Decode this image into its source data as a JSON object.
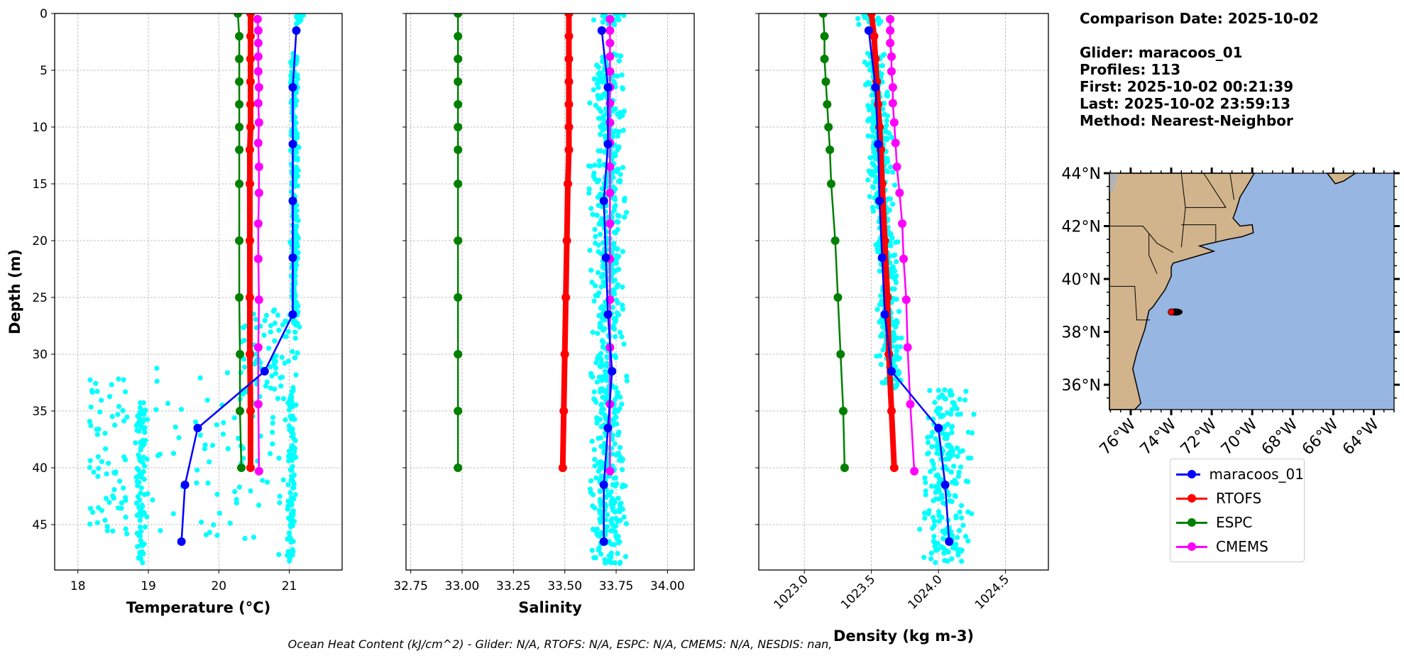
{
  "info": {
    "comparison_date": "Comparison Date: 2025-10-02",
    "glider": "Glider: maracoos_01",
    "profiles": "Profiles: 113",
    "first": "First: 2025-10-02 00:21:39",
    "last": "Last: 2025-10-02 23:59:13",
    "method": "Method: Nearest-Neighbor"
  },
  "footer": "Ocean Heat Content (kJ/cm^2) - Glider: N/A,  RTOFS: N/A,  ESPC: N/A,  CMEMS: N/A,  NESDIS: nan,",
  "colors": {
    "glider": "#0000ff",
    "rtofs": "#ff0000",
    "espc": "#008000",
    "cmems": "#ff00ff",
    "raw": "#00ffff",
    "land": "#d2b48c",
    "ocean": "#97b6e1"
  },
  "legend": [
    {
      "label": "maracoos_01",
      "color": "#0000ff"
    },
    {
      "label": "RTOFS",
      "color": "#ff0000"
    },
    {
      "label": "ESPC",
      "color": "#008000"
    },
    {
      "label": "CMEMS",
      "color": "#ff00ff"
    }
  ],
  "chart_data": [
    {
      "type": "line",
      "xlabel": "Temperature (°C)",
      "ylabel": "Depth (m)",
      "xlim": [
        17.67,
        21.75
      ],
      "ylim": [
        49,
        0
      ],
      "grid": true,
      "xticks": [
        "18",
        "19",
        "20",
        "21"
      ],
      "yticks": [
        "0",
        "5",
        "10",
        "15",
        "20",
        "25",
        "30",
        "35",
        "40",
        "45"
      ],
      "series": [
        {
          "name": "maracoos_01",
          "color": "#0000ff",
          "depth": [
            1.5,
            6.5,
            11.5,
            16.5,
            21.5,
            26.5,
            31.5,
            36.5,
            41.5,
            46.5
          ],
          "values": [
            21.1,
            21.05,
            21.05,
            21.05,
            21.05,
            21.05,
            20.65,
            19.7,
            19.52,
            19.47
          ]
        },
        {
          "name": "RTOFS",
          "color": "#ff0000",
          "depth": [
            0,
            2,
            4,
            6,
            8,
            10,
            12,
            15,
            20,
            25,
            30,
            35,
            40
          ],
          "values": [
            20.45,
            20.45,
            20.45,
            20.45,
            20.45,
            20.45,
            20.44,
            20.44,
            20.44,
            20.44,
            20.44,
            20.45,
            20.45
          ]
        },
        {
          "name": "ESPC",
          "color": "#008000",
          "depth": [
            0,
            2,
            4,
            6,
            8,
            10,
            12,
            15,
            20,
            25,
            30,
            35,
            40
          ],
          "values": [
            20.27,
            20.29,
            20.29,
            20.29,
            20.29,
            20.29,
            20.29,
            20.29,
            20.29,
            20.29,
            20.3,
            20.3,
            20.32
          ]
        },
        {
          "name": "CMEMS",
          "color": "#ff00ff",
          "depth": [
            0.5,
            1.5,
            2.6,
            3.8,
            5.1,
            6.5,
            7.9,
            9.6,
            11.4,
            13.5,
            15.8,
            18.5,
            21.6,
            25.2,
            29.4,
            34.4,
            40.3
          ],
          "values": [
            20.55,
            20.56,
            20.56,
            20.56,
            20.56,
            20.57,
            20.56,
            20.57,
            20.56,
            20.57,
            20.57,
            20.56,
            20.56,
            20.57,
            20.56,
            20.56,
            20.57
          ]
        }
      ]
    },
    {
      "type": "line",
      "xlabel": "Salinity",
      "xlim": [
        32.727,
        34.13
      ],
      "ylim": [
        49,
        0
      ],
      "grid": true,
      "xticks": [
        "32.75",
        "33.00",
        "33.25",
        "33.50",
        "33.75",
        "34.00"
      ],
      "series": [
        {
          "name": "maracoos_01",
          "color": "#0000ff",
          "depth": [
            1.5,
            6.5,
            11.5,
            16.5,
            21.5,
            26.5,
            31.5,
            36.5,
            41.5,
            46.5
          ],
          "values": [
            33.68,
            33.71,
            33.71,
            33.69,
            33.7,
            33.71,
            33.73,
            33.71,
            33.69,
            33.69
          ]
        },
        {
          "name": "RTOFS",
          "color": "#ff0000",
          "depth": [
            0,
            2,
            4,
            6,
            8,
            10,
            12,
            15,
            20,
            25,
            30,
            35,
            40
          ],
          "values": [
            33.52,
            33.52,
            33.52,
            33.52,
            33.52,
            33.52,
            33.52,
            33.515,
            33.51,
            33.505,
            33.5,
            33.495,
            33.49
          ]
        },
        {
          "name": "ESPC",
          "color": "#008000",
          "depth": [
            0,
            2,
            4,
            6,
            8,
            10,
            12,
            15,
            20,
            25,
            30,
            35,
            40
          ],
          "values": [
            32.98,
            32.98,
            32.98,
            32.98,
            32.98,
            32.98,
            32.98,
            32.98,
            32.98,
            32.98,
            32.98,
            32.98,
            32.98
          ]
        },
        {
          "name": "CMEMS",
          "color": "#ff00ff",
          "depth": [
            0.5,
            1.5,
            2.6,
            3.8,
            5.1,
            6.5,
            7.9,
            9.6,
            11.4,
            13.5,
            15.8,
            18.5,
            21.6,
            25.2,
            29.4,
            34.4,
            40.3
          ],
          "values": [
            33.72,
            33.72,
            33.72,
            33.72,
            33.72,
            33.72,
            33.72,
            33.72,
            33.72,
            33.72,
            33.72,
            33.72,
            33.72,
            33.72,
            33.72,
            33.72,
            33.72
          ]
        }
      ]
    },
    {
      "type": "line",
      "xlabel": "Density (kg m-3)",
      "xlim": [
        1022.66,
        1024.82
      ],
      "ylim": [
        49,
        0
      ],
      "grid": true,
      "xticks": [
        "1023.0",
        "1023.5",
        "1024.0",
        "1024.5"
      ],
      "series": [
        {
          "name": "maracoos_01",
          "color": "#0000ff",
          "depth": [
            1.5,
            6.5,
            11.5,
            16.5,
            21.5,
            26.5,
            31.5,
            36.5,
            41.5,
            46.5
          ],
          "values": [
            1023.48,
            1023.53,
            1023.55,
            1023.56,
            1023.58,
            1023.6,
            1023.65,
            1024.0,
            1024.05,
            1024.08
          ]
        },
        {
          "name": "RTOFS",
          "color": "#ff0000",
          "depth": [
            0,
            2,
            4,
            6,
            8,
            10,
            12,
            15,
            20,
            25,
            30,
            35,
            40
          ],
          "values": [
            1023.5,
            1023.52,
            1023.53,
            1023.54,
            1023.55,
            1023.56,
            1023.57,
            1023.58,
            1023.6,
            1023.62,
            1023.63,
            1023.65,
            1023.67
          ]
        },
        {
          "name": "ESPC",
          "color": "#008000",
          "depth": [
            0,
            2,
            4,
            6,
            8,
            10,
            12,
            15,
            20,
            25,
            30,
            35,
            40
          ],
          "values": [
            1023.14,
            1023.15,
            1023.15,
            1023.16,
            1023.17,
            1023.18,
            1023.19,
            1023.2,
            1023.23,
            1023.25,
            1023.27,
            1023.29,
            1023.3
          ]
        },
        {
          "name": "CMEMS",
          "color": "#ff00ff",
          "depth": [
            0.5,
            1.5,
            2.6,
            3.8,
            5.1,
            6.5,
            7.9,
            9.6,
            11.4,
            13.5,
            15.8,
            18.5,
            21.6,
            25.2,
            29.4,
            34.4,
            40.3
          ],
          "values": [
            1023.64,
            1023.64,
            1023.64,
            1023.65,
            1023.65,
            1023.66,
            1023.66,
            1023.67,
            1023.68,
            1023.69,
            1023.71,
            1023.73,
            1023.74,
            1023.76,
            1023.77,
            1023.79,
            1023.82
          ]
        }
      ]
    }
  ],
  "map": {
    "lon_range": [
      -77.05,
      -63.0
    ],
    "lat_range": [
      35.06,
      44.0
    ],
    "lat_ticks": [
      "36°N",
      "38°N",
      "40°N",
      "42°N",
      "44°N"
    ],
    "lon_ticks": [
      "76°W",
      "74°W",
      "72°W",
      "70°W",
      "68°W",
      "66°W",
      "64°W"
    ],
    "glider_position": {
      "lon": -74.0,
      "lat": 38.75
    }
  }
}
